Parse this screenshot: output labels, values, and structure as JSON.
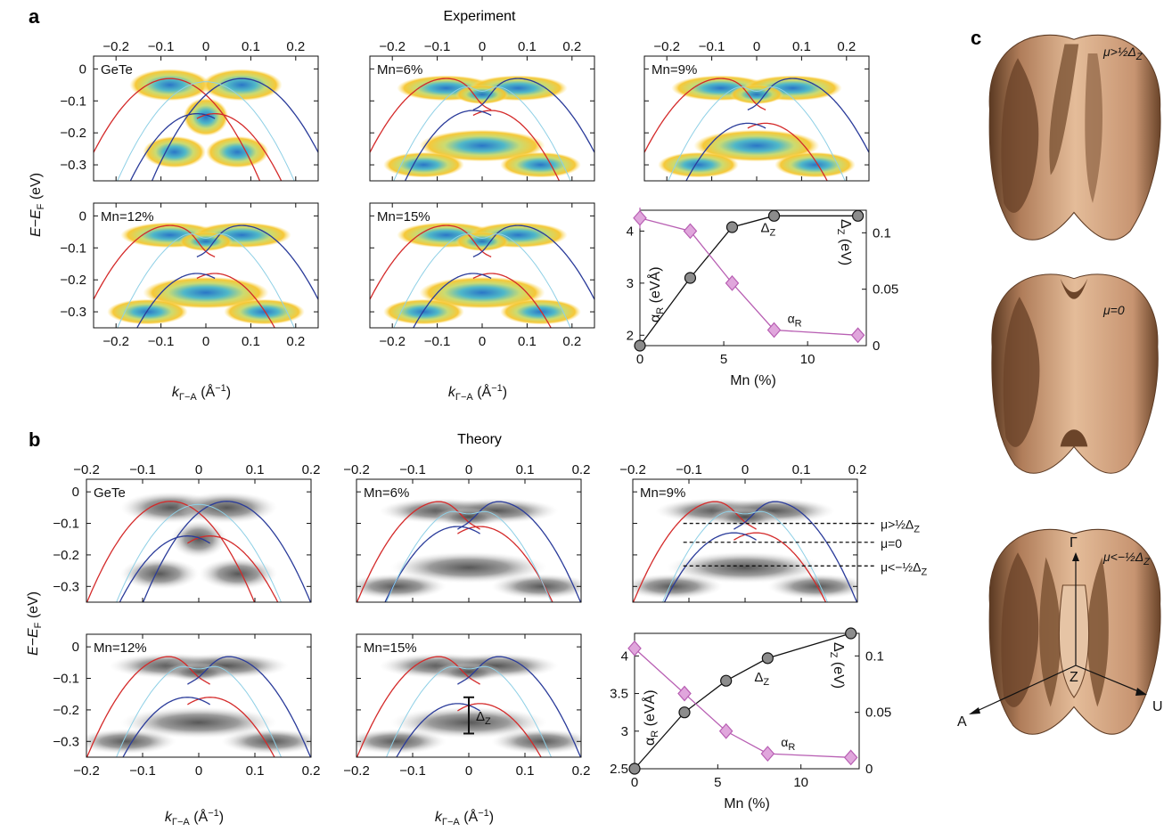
{
  "panels": {
    "a": "a",
    "b": "b",
    "c": "c"
  },
  "titles": {
    "experiment": "Experiment",
    "theory": "Theory"
  },
  "axis": {
    "k_label": "k",
    "k_sub": "Γ−A",
    "k_unit": " (Å",
    "k_sup": "−1",
    "k_close": ")",
    "e_label": "E−E",
    "e_sub": "F",
    "e_unit": " (eV)",
    "mn_label": "Mn (%)",
    "alpha_label": "α",
    "alpha_sub": "R",
    "alpha_unit": " (eVÅ)",
    "delta_label": "Δ",
    "delta_sub": "Z",
    "delta_unit": " (eV)"
  },
  "experiment": {
    "kticks": [
      "−0.2",
      "−0.1",
      "0",
      "0.1",
      "0.2"
    ],
    "kvalues": [
      -0.2,
      -0.1,
      0,
      0.1,
      0.2
    ],
    "krange": [
      -0.25,
      0.25
    ],
    "eticks": [
      "0",
      "−0.1",
      "−0.2",
      "−0.3"
    ],
    "evalues": [
      0,
      -0.1,
      -0.2,
      -0.3
    ],
    "erange": [
      -0.35,
      0.04
    ],
    "maps": [
      {
        "label": "GeTe",
        "gap": 0.0
      },
      {
        "label": "Mn=6%",
        "gap": 0.07
      },
      {
        "label": "Mn=9%",
        "gap": 0.11
      },
      {
        "label": "Mn=12%",
        "gap": 0.12
      },
      {
        "label": "Mn=15%",
        "gap": 0.12
      }
    ]
  },
  "theory": {
    "kticks": [
      "−0.2",
      "−0.1",
      "0",
      "0.1",
      "0.2"
    ],
    "kvalues": [
      -0.2,
      -0.1,
      0,
      0.1,
      0.2
    ],
    "krange": [
      -0.2,
      0.2
    ],
    "eticks": [
      "0",
      "−0.1",
      "−0.2",
      "−0.3"
    ],
    "evalues": [
      0,
      -0.1,
      -0.2,
      -0.3
    ],
    "erange": [
      -0.35,
      0.04
    ],
    "maps": [
      {
        "label": "GeTe",
        "gap": 0.0
      },
      {
        "label": "Mn=6%",
        "gap": 0.05
      },
      {
        "label": "Mn=9%",
        "gap": 0.07
      },
      {
        "label": "Mn=12%",
        "gap": 0.1
      },
      {
        "label": "Mn=15%",
        "gap": 0.12
      }
    ],
    "mu_labels": [
      "μ>½Δ",
      "μ=0",
      "μ<−½Δ"
    ],
    "mu_sub": "Z",
    "delta_marker": "Δ",
    "delta_marker_sub": "Z"
  },
  "chart_data": [
    {
      "type": "line",
      "title": "",
      "xlabel": "Mn (%)",
      "ylabel": "αR (eVÅ)",
      "y2label": "ΔZ (eV)",
      "xlim": [
        0,
        13.5
      ],
      "ylim": [
        1.8,
        4.4
      ],
      "y2lim": [
        0,
        0.12
      ],
      "xticks": [
        "0",
        "5",
        "10"
      ],
      "xtick_values": [
        0,
        5,
        10
      ],
      "yticks": [
        "2",
        "3",
        "4"
      ],
      "ytick_values": [
        2,
        3,
        4
      ],
      "y2ticks": [
        "0",
        "0.05",
        "0.1"
      ],
      "y2tick_values": [
        0,
        0.05,
        0.1
      ],
      "series": [
        {
          "name": "αR",
          "axis": "left",
          "color": "#b85fb3",
          "x": [
            0,
            3,
            5.5,
            8,
            13
          ],
          "values": [
            4.25,
            4.0,
            3.0,
            2.1,
            2.0
          ],
          "err": [
            0.2,
            0.1,
            0.1,
            0.05,
            0.05
          ]
        },
        {
          "name": "ΔZ",
          "axis": "right",
          "color": "#111111",
          "x": [
            0,
            3,
            5.5,
            8,
            13
          ],
          "values": [
            0,
            0.06,
            0.105,
            0.115,
            0.115
          ]
        }
      ],
      "labels": {
        "alpha": "α",
        "alpha_sub": "R",
        "delta": "Δ",
        "delta_sub": "Z"
      }
    },
    {
      "type": "line",
      "title": "",
      "xlabel": "Mn (%)",
      "ylabel": "αR (eVÅ)",
      "y2label": "ΔZ (eV)",
      "xlim": [
        0,
        13.5
      ],
      "ylim": [
        2.5,
        4.3
      ],
      "y2lim": [
        0,
        0.12
      ],
      "xticks": [
        "0",
        "5",
        "10"
      ],
      "xtick_values": [
        0,
        5,
        10
      ],
      "yticks": [
        "2.5",
        "3",
        "3.5",
        "4"
      ],
      "ytick_values": [
        2.5,
        3,
        3.5,
        4
      ],
      "y2ticks": [
        "0",
        "0.05",
        "0.1"
      ],
      "y2tick_values": [
        0,
        0.05,
        0.1
      ],
      "series": [
        {
          "name": "αR",
          "axis": "left",
          "color": "#b85fb3",
          "x": [
            0,
            3,
            5.5,
            8,
            13
          ],
          "values": [
            4.1,
            3.5,
            3.0,
            2.7,
            2.65
          ],
          "err": [
            0.06,
            0.06,
            0.06,
            0.06,
            0.06
          ]
        },
        {
          "name": "ΔZ",
          "axis": "right",
          "color": "#111111",
          "x": [
            0,
            3,
            5.5,
            8,
            13
          ],
          "values": [
            0,
            0.05,
            0.078,
            0.098,
            0.12
          ]
        }
      ],
      "labels": {
        "alpha": "α",
        "alpha_sub": "R",
        "delta": "Δ",
        "delta_sub": "Z"
      }
    }
  ],
  "fermi_surfaces": {
    "labels": [
      "μ>½Δ",
      "μ=0",
      "μ<−½Δ"
    ],
    "sub": "Z",
    "axes": {
      "gamma": "Γ",
      "z": "Z",
      "a": "A",
      "u": "U"
    },
    "color": "#dcb18e"
  }
}
